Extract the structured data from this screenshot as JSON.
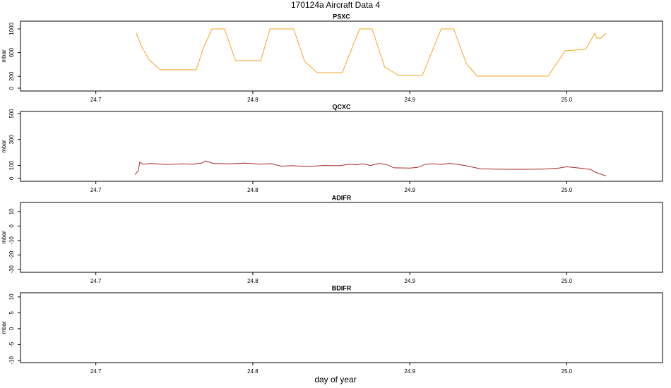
{
  "title": "170124a   Aircraft Data 4",
  "xlabel": "day of year",
  "chart_data": [
    {
      "type": "line",
      "title": "PSXC",
      "ylabel": "mbar",
      "color": "#f5a623",
      "x": [
        24.7257,
        24.729,
        24.734,
        24.738,
        24.741,
        24.764,
        24.7685,
        24.774,
        24.782,
        24.789,
        24.805,
        24.811,
        24.826,
        24.833,
        24.841,
        24.857,
        24.868,
        24.876,
        24.884,
        24.893,
        24.908,
        24.92,
        24.928,
        24.936,
        24.943,
        24.988,
        24.999,
        25.012,
        25.018,
        25.019,
        25.022,
        25.025
      ],
      "values": [
        929,
        714,
        476,
        381,
        310,
        310,
        679,
        1000,
        1000,
        464,
        464,
        1000,
        1000,
        452,
        262,
        262,
        1000,
        1000,
        357,
        214,
        214,
        1000,
        1000,
        417,
        202,
        202,
        631,
        655,
        929,
        845,
        845,
        929
      ],
      "xlim": [
        24.652,
        25.061
      ],
      "xticks": [
        24.7,
        24.8,
        24.9,
        {
          "value": 25,
          "label": "25.0"
        }
      ],
      "ylim": [
        -48,
        1131
      ],
      "yticks": [
        0,
        200,
        600,
        1000
      ]
    },
    {
      "type": "line",
      "title": "QCXC",
      "ylabel": "mbar",
      "color": "#a52a2a",
      "x": [
        24.725,
        24.727,
        24.728,
        24.73,
        24.735,
        24.745,
        24.755,
        24.762,
        24.768,
        24.77,
        24.775,
        24.785,
        24.795,
        24.805,
        24.812,
        24.818,
        24.825,
        24.835,
        24.845,
        24.855,
        24.862,
        24.866,
        24.87,
        24.875,
        24.88,
        24.885,
        24.89,
        24.9,
        24.905,
        24.91,
        24.915,
        24.92,
        24.925,
        24.93,
        24.935,
        24.945,
        24.955,
        24.97,
        24.985,
        24.995,
        25.0,
        25.008,
        25.015,
        25.018,
        25.02,
        25.025
      ],
      "values": [
        30,
        60,
        125,
        110,
        115,
        108,
        112,
        110,
        120,
        135,
        115,
        112,
        118,
        110,
        114,
        95,
        98,
        92,
        100,
        98,
        110,
        105,
        112,
        100,
        115,
        108,
        82,
        80,
        85,
        110,
        112,
        108,
        115,
        110,
        100,
        75,
        72,
        70,
        72,
        80,
        90,
        80,
        70,
        50,
        40,
        20
      ],
      "xlim": [
        24.652,
        25.061
      ],
      "xticks": [
        24.7,
        24.8,
        24.9,
        {
          "value": 25,
          "label": "25.0"
        }
      ],
      "ylim": [
        -22,
        516
      ],
      "yticks": [
        0,
        100,
        300,
        500
      ]
    },
    {
      "type": "line",
      "title": "ADIFR",
      "ylabel": "mbar",
      "xlim": [
        24.652,
        25.061
      ],
      "xticks": [
        24.7,
        24.8,
        24.9,
        {
          "value": 25,
          "label": "25.0"
        }
      ],
      "ylim": [
        -32,
        16.3
      ],
      "yticks": [
        -30,
        -20,
        -10,
        0,
        10
      ]
    },
    {
      "type": "line",
      "title": "BDIFR",
      "ylabel": "mbar",
      "xlim": [
        24.652,
        25.061
      ],
      "xticks": [
        24.7,
        24.8,
        24.9,
        {
          "value": 25,
          "label": "25.0"
        }
      ],
      "ylim": [
        -10.7,
        11.3
      ],
      "yticks": [
        -10,
        -5,
        0,
        5,
        10
      ]
    }
  ]
}
